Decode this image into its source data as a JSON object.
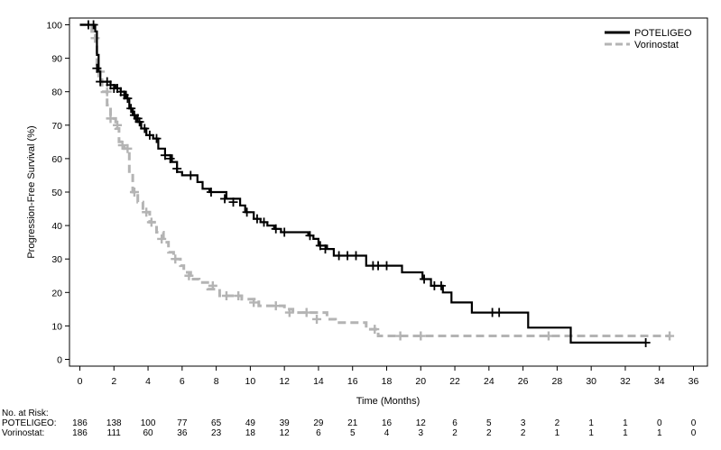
{
  "chart_data": {
    "type": "line",
    "subtype": "kaplan-meier",
    "title": "",
    "xlabel": "Time (Months)",
    "ylabel": "Progression-Free Survival (%)",
    "xlim": [
      0,
      36
    ],
    "ylim": [
      0,
      100
    ],
    "x_ticks": [
      "0",
      "2",
      "4",
      "6",
      "8",
      "10",
      "12",
      "14",
      "16",
      "18",
      "20",
      "22",
      "24",
      "26",
      "28",
      "30",
      "32",
      "34",
      "36"
    ],
    "y_ticks": [
      "0",
      "10",
      "20",
      "30",
      "40",
      "50",
      "60",
      "70",
      "80",
      "90",
      "100"
    ],
    "grid": false,
    "legend_position": "top-right",
    "series": [
      {
        "name": "POTELIGEO",
        "color": "#000000",
        "line_style": "solid",
        "steps": [
          [
            0,
            100
          ],
          [
            0.9,
            98
          ],
          [
            1,
            91
          ],
          [
            1.1,
            86
          ],
          [
            1.2,
            83
          ],
          [
            1.5,
            83
          ],
          [
            1.8,
            82
          ],
          [
            2.1,
            81
          ],
          [
            2.4,
            80
          ],
          [
            2.7,
            78
          ],
          [
            2.9,
            75
          ],
          [
            3.1,
            73
          ],
          [
            3.3,
            71
          ],
          [
            3.6,
            69
          ],
          [
            3.9,
            67
          ],
          [
            4.3,
            66
          ],
          [
            4.6,
            63
          ],
          [
            5,
            61
          ],
          [
            5.4,
            59
          ],
          [
            5.7,
            56
          ],
          [
            6,
            55
          ],
          [
            6.6,
            55
          ],
          [
            6.9,
            53
          ],
          [
            7.2,
            51
          ],
          [
            7.6,
            50
          ],
          [
            8.2,
            50
          ],
          [
            8.6,
            48
          ],
          [
            9.4,
            46
          ],
          [
            9.7,
            44
          ],
          [
            10.2,
            42
          ],
          [
            10.6,
            41
          ],
          [
            11,
            40
          ],
          [
            11.4,
            39
          ],
          [
            11.8,
            38
          ],
          [
            13.4,
            37
          ],
          [
            13.7,
            36
          ],
          [
            14,
            34
          ],
          [
            14.5,
            33
          ],
          [
            14.9,
            31
          ],
          [
            15.8,
            31
          ],
          [
            16.8,
            28
          ],
          [
            18.9,
            26
          ],
          [
            20.1,
            24
          ],
          [
            20.6,
            22
          ],
          [
            21.3,
            20
          ],
          [
            21.8,
            17
          ],
          [
            23,
            14
          ],
          [
            26.3,
            9.5
          ],
          [
            28.8,
            5
          ],
          [
            33.2,
            5
          ]
        ],
        "censor_marks": [
          [
            0.5,
            100
          ],
          [
            0.8,
            100
          ],
          [
            1,
            87
          ],
          [
            1.2,
            83
          ],
          [
            1.6,
            83
          ],
          [
            1.8,
            82
          ],
          [
            2,
            81
          ],
          [
            2.2,
            81
          ],
          [
            2.4,
            80
          ],
          [
            2.6,
            79
          ],
          [
            2.8,
            78
          ],
          [
            3,
            75
          ],
          [
            3.2,
            73
          ],
          [
            3.4,
            72
          ],
          [
            3.5,
            71
          ],
          [
            3.8,
            69
          ],
          [
            4.1,
            67
          ],
          [
            4.5,
            66
          ],
          [
            5,
            61
          ],
          [
            5.3,
            60
          ],
          [
            5.7,
            57
          ],
          [
            6.5,
            55
          ],
          [
            7.7,
            50
          ],
          [
            8.5,
            48
          ],
          [
            9,
            47
          ],
          [
            9.8,
            44
          ],
          [
            10.4,
            42
          ],
          [
            10.8,
            41
          ],
          [
            11.5,
            39
          ],
          [
            12,
            38
          ],
          [
            13.5,
            37
          ],
          [
            14.1,
            34
          ],
          [
            14.4,
            33
          ],
          [
            15.2,
            31
          ],
          [
            15.7,
            31
          ],
          [
            16.2,
            31
          ],
          [
            17.2,
            28
          ],
          [
            17.5,
            28
          ],
          [
            18,
            28
          ],
          [
            20.2,
            24
          ],
          [
            20.8,
            22
          ],
          [
            21.2,
            22
          ],
          [
            24.2,
            14
          ],
          [
            24.6,
            14
          ],
          [
            33.2,
            5
          ]
        ]
      },
      {
        "name": "Vorinostat",
        "color": "#b4b4b4",
        "line_style": "dashed",
        "steps": [
          [
            0,
            100
          ],
          [
            0.7,
            98
          ],
          [
            0.9,
            94
          ],
          [
            1,
            88
          ],
          [
            1.1,
            84
          ],
          [
            1.3,
            80
          ],
          [
            1.6,
            76
          ],
          [
            1.8,
            72
          ],
          [
            2.1,
            69
          ],
          [
            2.3,
            65
          ],
          [
            2.6,
            63
          ],
          [
            2.9,
            55
          ],
          [
            3.1,
            50
          ],
          [
            3.4,
            47
          ],
          [
            3.7,
            44
          ],
          [
            4.1,
            41
          ],
          [
            4.5,
            38
          ],
          [
            4.9,
            35
          ],
          [
            5.2,
            32
          ],
          [
            5.5,
            30
          ],
          [
            5.9,
            28
          ],
          [
            6.1,
            26
          ],
          [
            6.5,
            24
          ],
          [
            7,
            23
          ],
          [
            7.5,
            21
          ],
          [
            8.2,
            19
          ],
          [
            9.5,
            18
          ],
          [
            10.5,
            16
          ],
          [
            12,
            15
          ],
          [
            12.5,
            14
          ],
          [
            13,
            14
          ],
          [
            14.5,
            12
          ],
          [
            15,
            11
          ],
          [
            16.8,
            9
          ],
          [
            17.5,
            7
          ],
          [
            34.6,
            7
          ]
        ],
        "censor_marks": [
          [
            0.9,
            96
          ],
          [
            1.2,
            86
          ],
          [
            1.6,
            80
          ],
          [
            1.8,
            72
          ],
          [
            2.2,
            70
          ],
          [
            2.5,
            64
          ],
          [
            2.8,
            63
          ],
          [
            3.2,
            50
          ],
          [
            3.9,
            44
          ],
          [
            4.2,
            41
          ],
          [
            4.8,
            36
          ],
          [
            5.6,
            30
          ],
          [
            6.4,
            25
          ],
          [
            7.8,
            22
          ],
          [
            8.6,
            19
          ],
          [
            9.3,
            19
          ],
          [
            10.2,
            17
          ],
          [
            11.5,
            16
          ],
          [
            12.3,
            14
          ],
          [
            13.3,
            14
          ],
          [
            13.9,
            12
          ],
          [
            17.3,
            9
          ],
          [
            18.8,
            7
          ],
          [
            20,
            7
          ],
          [
            27.5,
            7
          ],
          [
            34.6,
            7
          ]
        ]
      }
    ],
    "risk_table": {
      "header": "No. at Risk:",
      "times": [
        0,
        2,
        4,
        6,
        8,
        10,
        12,
        14,
        16,
        18,
        20,
        22,
        24,
        26,
        28,
        30,
        32,
        34,
        36
      ],
      "rows": [
        {
          "label": "POTELIGEO:",
          "counts": [
            186,
            138,
            100,
            77,
            65,
            49,
            39,
            29,
            21,
            16,
            12,
            6,
            5,
            3,
            2,
            1,
            1,
            0,
            0
          ]
        },
        {
          "label": "Vorinostat:",
          "counts": [
            186,
            111,
            60,
            36,
            23,
            18,
            12,
            6,
            5,
            4,
            3,
            2,
            2,
            2,
            1,
            1,
            1,
            1,
            0
          ]
        }
      ]
    }
  }
}
